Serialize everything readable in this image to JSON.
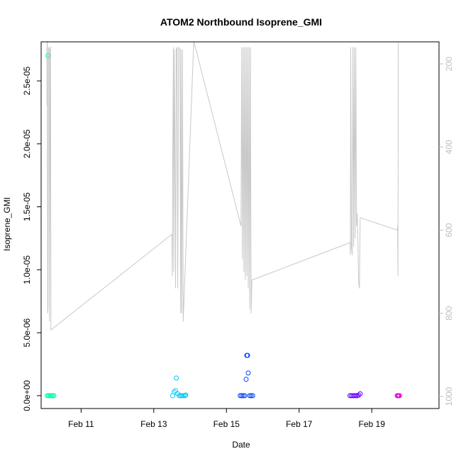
{
  "chart_data": {
    "type": "scatter",
    "title": "ATOM2 Northbound Isoprene_GMI",
    "xlabel": "Date",
    "ylabel": "Isoprene_GMI",
    "x_ticks": [
      "Feb 11",
      "Feb 13",
      "Feb 15",
      "Feb 17",
      "Feb 19"
    ],
    "y_ticks": [
      "0.0e+00",
      "5.0e-06",
      "1.0e-05",
      "1.5e-05",
      "2.0e-05",
      "2.5e-05"
    ],
    "y_tick_values": [
      0,
      5e-06,
      1e-05,
      1.5e-05,
      2e-05,
      2.5e-05
    ],
    "y2_ticks": [
      "200",
      "400",
      "600",
      "800",
      "1000"
    ],
    "y2_tick_values": [
      200,
      400,
      600,
      800,
      1000
    ],
    "xlim": [
      9.9,
      20.85
    ],
    "ylim": [
      -1.02e-06,
      2.81e-05
    ],
    "y2lim": [
      1029,
      147
    ],
    "colors": {
      "axis": "#000000",
      "secondary_axis": "#bebebe",
      "pressure_line": "#c8c8c8"
    },
    "series": [
      {
        "color": "#00ffb0",
        "points": [
          [
            10.09,
            2.7e-05
          ],
          [
            10.07,
            0
          ],
          [
            10.1,
            0
          ],
          [
            10.13,
            0
          ],
          [
            10.16,
            0
          ],
          [
            10.19,
            0
          ],
          [
            10.22,
            0
          ],
          [
            10.25,
            0
          ]
        ]
      },
      {
        "color": "#00c8ff",
        "points": [
          [
            13.52,
            0
          ],
          [
            13.56,
            3e-07
          ],
          [
            13.6,
            4e-07
          ],
          [
            13.62,
            1.4e-06
          ],
          [
            13.66,
            1.5e-07
          ],
          [
            13.7,
            0
          ],
          [
            13.74,
            0
          ],
          [
            13.78,
            0
          ],
          [
            13.82,
            0
          ],
          [
            13.86,
            0
          ],
          [
            13.88,
            5e-08
          ]
        ]
      },
      {
        "color": "#0040ff",
        "points": [
          [
            15.38,
            0
          ],
          [
            15.42,
            0
          ],
          [
            15.46,
            0
          ],
          [
            15.5,
            0
          ],
          [
            15.54,
            1.3e-06
          ],
          [
            15.56,
            3.2e-06
          ],
          [
            15.58,
            3.2e-06
          ],
          [
            15.6,
            1.8e-06
          ],
          [
            15.64,
            0
          ],
          [
            15.68,
            0
          ],
          [
            15.72,
            0
          ]
        ]
      },
      {
        "color": "#6a00ff",
        "points": [
          [
            18.4,
            0
          ],
          [
            18.44,
            0
          ],
          [
            18.48,
            0
          ],
          [
            18.52,
            0
          ],
          [
            18.56,
            0
          ],
          [
            18.6,
            0
          ],
          [
            18.64,
            5e-08
          ],
          [
            18.68,
            1.5e-07
          ]
        ]
      },
      {
        "color": "#ee00e0",
        "points": [
          [
            19.7,
            0
          ],
          [
            19.72,
            0
          ],
          [
            19.74,
            0
          ],
          [
            19.76,
            0
          ]
        ]
      }
    ],
    "pressure_line": {
      "axis": "right",
      "points": [
        [
          10.06,
          300
        ],
        [
          10.06,
          165
        ],
        [
          10.07,
          140
        ],
        [
          10.08,
          800
        ],
        [
          10.09,
          780
        ],
        [
          10.1,
          160
        ],
        [
          10.12,
          165
        ],
        [
          10.13,
          820
        ],
        [
          10.15,
          160
        ],
        [
          10.16,
          160
        ],
        [
          10.17,
          840
        ],
        [
          13.5,
          610
        ],
        [
          13.51,
          710
        ],
        [
          13.52,
          430
        ],
        [
          13.54,
          160
        ],
        [
          13.55,
          700
        ],
        [
          13.57,
          165
        ],
        [
          13.6,
          740
        ],
        [
          13.62,
          160
        ],
        [
          13.64,
          165
        ],
        [
          13.66,
          740
        ],
        [
          13.68,
          160
        ],
        [
          13.72,
          165
        ],
        [
          13.74,
          800
        ],
        [
          13.75,
          165
        ],
        [
          13.77,
          800
        ],
        [
          13.79,
          165
        ],
        [
          13.81,
          820
        ],
        [
          14.1,
          145
        ],
        [
          15.4,
          590
        ],
        [
          15.42,
          160
        ],
        [
          15.44,
          670
        ],
        [
          15.46,
          160
        ],
        [
          15.48,
          700
        ],
        [
          15.5,
          160
        ],
        [
          15.52,
          720
        ],
        [
          15.54,
          160
        ],
        [
          15.56,
          710
        ],
        [
          15.58,
          160
        ],
        [
          15.6,
          740
        ],
        [
          15.62,
          160
        ],
        [
          15.64,
          790
        ],
        [
          15.66,
          160
        ],
        [
          15.68,
          800
        ],
        [
          15.7,
          720
        ],
        [
          18.4,
          630
        ],
        [
          18.41,
          660
        ],
        [
          18.42,
          160
        ],
        [
          18.44,
          640
        ],
        [
          18.46,
          660
        ],
        [
          18.48,
          160
        ],
        [
          18.5,
          640
        ],
        [
          18.52,
          160
        ],
        [
          18.54,
          620
        ],
        [
          18.56,
          160
        ],
        [
          18.58,
          590
        ],
        [
          18.6,
          560
        ],
        [
          18.62,
          640
        ],
        [
          18.64,
          730
        ],
        [
          18.66,
          740
        ],
        [
          18.68,
          570
        ],
        [
          19.7,
          600
        ],
        [
          19.71,
          590
        ],
        [
          19.72,
          710
        ],
        [
          19.73,
          150
        ],
        [
          19.74,
          150
        ]
      ]
    }
  }
}
